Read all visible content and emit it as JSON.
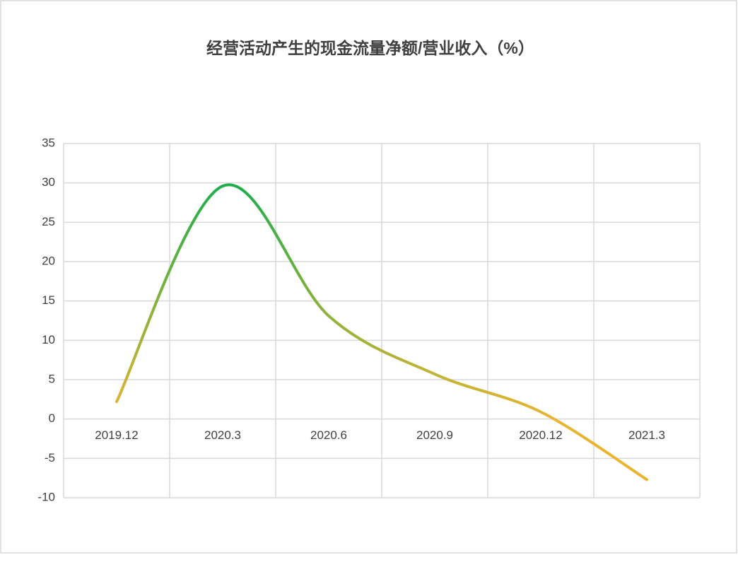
{
  "chart_data": {
    "type": "line",
    "categories": [
      "2019.12",
      "2020.3",
      "2020.6",
      "2020.9",
      "2020.12",
      "2021.3"
    ],
    "series": [
      {
        "name": "经营活动产生的现金流量净额/营业收入（%）",
        "gradient": [
          "#1fae4b",
          "#e9b531"
        ],
        "values": [
          2.2,
          29.6,
          13.1,
          5.7,
          0.9,
          -7.7
        ]
      }
    ],
    "ylim": [
      -10,
      35
    ],
    "yticks": [
      -10,
      -5,
      0,
      5,
      10,
      15,
      20,
      25,
      30,
      35
    ],
    "grid": true,
    "smooth": true
  }
}
